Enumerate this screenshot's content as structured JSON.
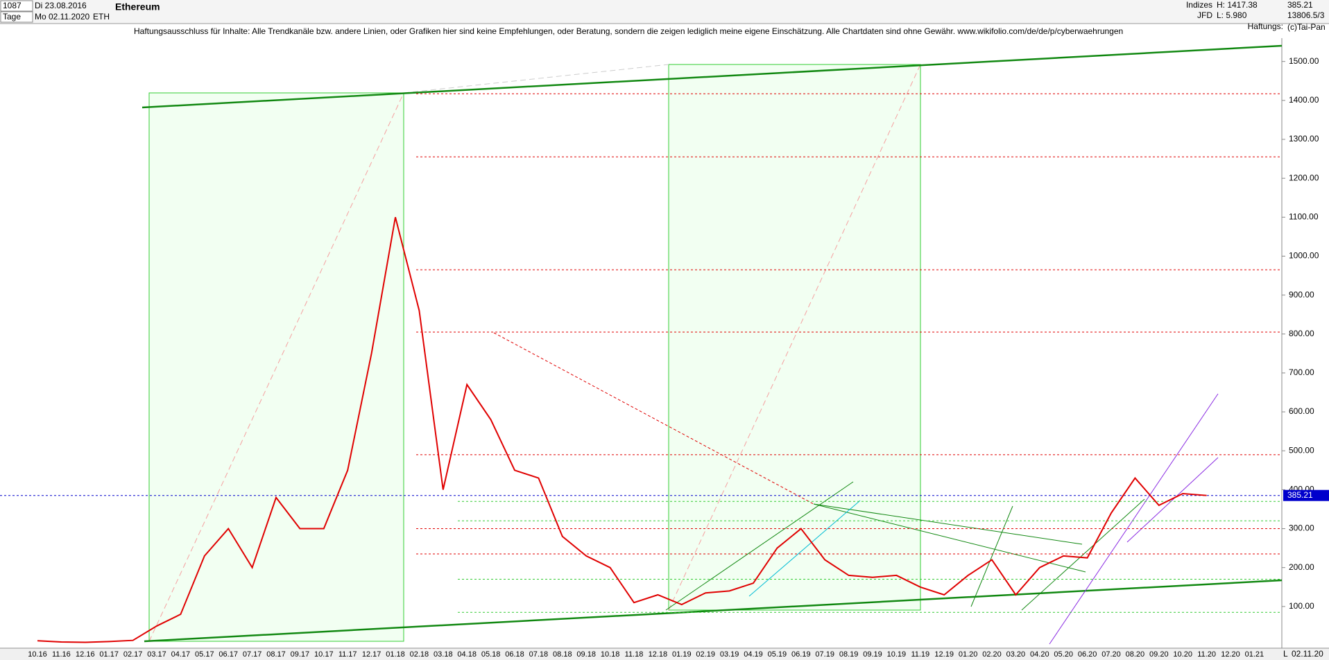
{
  "header": {
    "count": "1087",
    "start_date": "Di 23.08.2016",
    "period": "Tage",
    "end_date": "Mo 02.11.2020",
    "symbol": "ETH",
    "name": "Ethereum",
    "group": "Indizes",
    "source": "JFD",
    "high": "H: 1417.38",
    "low": "L: 5.980",
    "last": "385.21",
    "volume": "13806.5/3",
    "disclaimer_short": "Haftungs:",
    "copyright": "(c)Tai-Pan",
    "date_footer": "02.11.20",
    "scale_mode": "L"
  },
  "chart_data": {
    "type": "line",
    "title": "Haftungsausschluss für Inhalte: Alle Trendkanäle bzw. andere Linien, oder Grafiken hier sind keine Empfehlungen, oder Beratung, sondern die zeigen lediglich meine eigene Einschätzung. Alle Chartdaten sind ohne Gewähr.  www.wikifolio.com/de/de/p/cyberwaehrungen",
    "categories": [
      "10.16",
      "11.16",
      "12.16",
      "01.17",
      "02.17",
      "03.17",
      "04.17",
      "05.17",
      "06.17",
      "07.17",
      "08.17",
      "09.17",
      "10.17",
      "11.17",
      "12.17",
      "01.18",
      "02.18",
      "03.18",
      "04.18",
      "05.18",
      "06.18",
      "07.18",
      "08.18",
      "09.18",
      "10.18",
      "11.18",
      "12.18",
      "01.19",
      "02.19",
      "03.19",
      "04.19",
      "05.19",
      "06.19",
      "07.19",
      "08.19",
      "09.19",
      "10.19",
      "11.19",
      "12.19",
      "01.20",
      "02.20",
      "03.20",
      "04.20",
      "05.20",
      "06.20",
      "07.20",
      "08.20",
      "09.20",
      "10.20",
      "11.20",
      "12.20",
      "01.21"
    ],
    "series": [
      {
        "name": "Ethereum",
        "color": "#e00000",
        "values": [
          12,
          9,
          8,
          10,
          13,
          50,
          80,
          230,
          300,
          200,
          380,
          300,
          300,
          450,
          750,
          1100,
          860,
          400,
          670,
          580,
          450,
          430,
          280,
          230,
          200,
          110,
          130,
          105,
          135,
          140,
          160,
          250,
          300,
          220,
          180,
          175,
          180,
          150,
          130,
          180,
          220,
          130,
          200,
          230,
          225,
          340,
          430,
          360,
          390,
          385.21,
          null,
          null
        ]
      }
    ],
    "current_price": 385.21,
    "red_levels": [
      1417,
      1255,
      965,
      805,
      490,
      300,
      235
    ],
    "green_levels": [
      370,
      320,
      170,
      85
    ],
    "ylim": [
      0,
      1560
    ],
    "yticks": [
      {
        "value": 100,
        "label": "100.00"
      },
      {
        "value": 200,
        "label": "200.00"
      },
      {
        "value": 300,
        "label": "300.00"
      },
      {
        "value": 400,
        "label": "400.00"
      },
      {
        "value": 500,
        "label": "500.00"
      },
      {
        "value": 600,
        "label": "600.00"
      },
      {
        "value": 700,
        "label": "700.00"
      },
      {
        "value": 800,
        "label": "800.00"
      },
      {
        "value": 900,
        "label": "900.00"
      },
      {
        "value": 1000,
        "label": "1000.00"
      },
      {
        "value": 1100,
        "label": "1100.00"
      },
      {
        "value": 1200,
        "label": "1200.00"
      },
      {
        "value": 1300,
        "label": "1300.00"
      },
      {
        "value": 1400,
        "label": "1400.00"
      },
      {
        "value": 1500,
        "label": "1500.00"
      }
    ],
    "grid": false
  }
}
